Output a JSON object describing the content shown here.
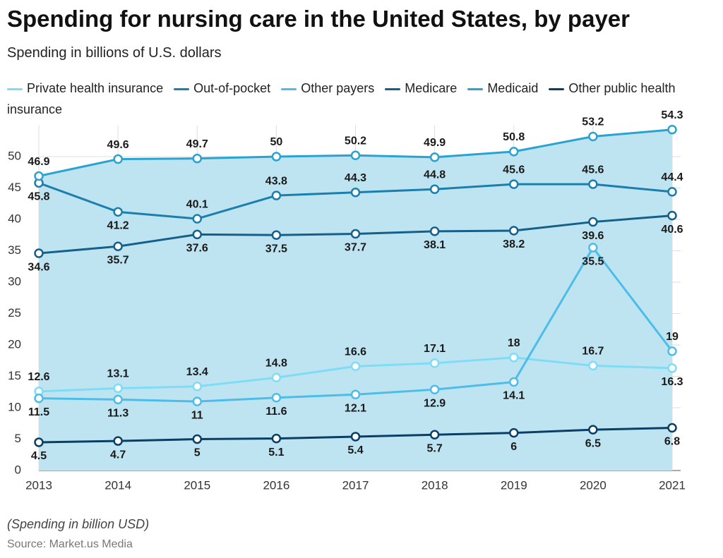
{
  "chart_data": {
    "type": "line",
    "title": "Spending for nursing care in the United States, by payer",
    "subtitle": "Spending in billions of U.S. dollars",
    "note": "(Spending in billion USD)",
    "source": "Source: Market.us Media",
    "categories": [
      "2013",
      "2014",
      "2015",
      "2016",
      "2017",
      "2018",
      "2019",
      "2020",
      "2021"
    ],
    "series": [
      {
        "name": "Private health insurance",
        "color": "#7fdcf6",
        "values": [
          12.6,
          13.1,
          13.4,
          14.8,
          16.6,
          17.1,
          18,
          16.7,
          16.3
        ]
      },
      {
        "name": "Out-of-pocket",
        "color": "#1a7fad",
        "values": [
          45.8,
          41.2,
          40.1,
          43.8,
          44.3,
          44.8,
          45.6,
          45.6,
          44.4
        ]
      },
      {
        "name": "Other payers",
        "color": "#4cbde9",
        "values": [
          11.5,
          11.3,
          11,
          11.6,
          12.1,
          12.9,
          14.1,
          35.5,
          19
        ]
      },
      {
        "name": "Medicare",
        "color": "#14608a",
        "values": [
          34.6,
          35.7,
          37.6,
          37.5,
          37.7,
          38.1,
          38.2,
          39.6,
          40.6
        ]
      },
      {
        "name": "Medicaid",
        "color": "#2aa3d0",
        "area": true,
        "fill": "#bfe4f1",
        "values": [
          46.9,
          49.6,
          49.7,
          50,
          50.2,
          49.9,
          50.8,
          53.2,
          54.3
        ]
      },
      {
        "name": "Other public health insurance",
        "color": "#0b3e66",
        "values": [
          4.5,
          4.7,
          5,
          5.1,
          5.4,
          5.7,
          6,
          6.5,
          6.8
        ]
      }
    ],
    "ylim": [
      0,
      55
    ],
    "yticks": [
      0,
      5,
      10,
      15,
      20,
      25,
      30,
      35,
      40,
      45,
      50
    ],
    "grid": true
  }
}
